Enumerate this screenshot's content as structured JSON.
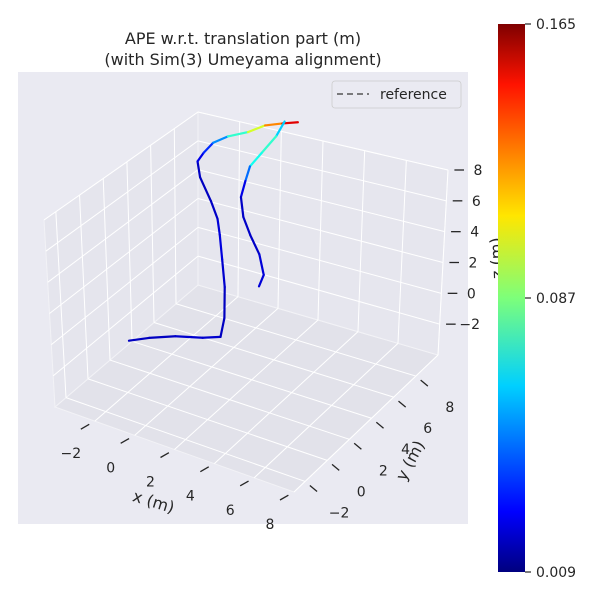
{
  "chart_data": {
    "type": "line",
    "projection": "3d",
    "title": [
      "APE w.r.t. translation part (m)",
      "(with Sim(3) Umeyama alignment)"
    ],
    "xlabel": "x (m)",
    "ylabel": "y (m)",
    "zlabel": "z (m)",
    "xlim": [
      -4,
      8
    ],
    "ylim": [
      -3,
      10
    ],
    "zlim": [
      -4,
      8
    ],
    "xticks": [
      -2,
      0,
      2,
      4,
      6,
      8
    ],
    "yticks": [
      -2,
      0,
      2,
      4,
      6,
      8
    ],
    "zticks": [
      -2,
      0,
      2,
      4,
      6,
      8
    ],
    "grid": true,
    "legend": {
      "position": "top-right",
      "entries": [
        {
          "label": "reference",
          "style": "dashed",
          "color": "#555555"
        }
      ]
    },
    "colorbar": {
      "colormap": "jet",
      "min": 0.009,
      "max": 0.165,
      "ticks": [
        0.009,
        0.087,
        0.165
      ],
      "tick_labels": [
        "0.009",
        "0.087",
        "0.165"
      ]
    },
    "series": [
      {
        "points": [
          {
            "x": -0.6,
            "y": -2.0,
            "z": 1.2,
            "ape": 0.02
          },
          {
            "x": 0.2,
            "y": -1.6,
            "z": 1.5,
            "ape": 0.018
          },
          {
            "x": 1.2,
            "y": -1.0,
            "z": 1.7,
            "ape": 0.02
          },
          {
            "x": 2.3,
            "y": -0.5,
            "z": 1.8,
            "ape": 0.022
          },
          {
            "x": 3.1,
            "y": -0.3,
            "z": 2.1,
            "ape": 0.02
          },
          {
            "x": 3.0,
            "y": 0.3,
            "z": 2.9,
            "ape": 0.018
          },
          {
            "x": 2.4,
            "y": 1.5,
            "z": 3.9,
            "ape": 0.02
          },
          {
            "x": 1.7,
            "y": 2.6,
            "z": 4.7,
            "ape": 0.022
          },
          {
            "x": 1.0,
            "y": 3.7,
            "z": 5.3,
            "ape": 0.025
          },
          {
            "x": 0.4,
            "y": 4.6,
            "z": 5.5,
            "ape": 0.02
          },
          {
            "x": -0.3,
            "y": 5.3,
            "z": 5.9,
            "ape": 0.02
          },
          {
            "x": -1.2,
            "y": 6.0,
            "z": 6.6,
            "ape": 0.018
          },
          {
            "x": -1.4,
            "y": 6.2,
            "z": 7.4,
            "ape": 0.02
          },
          {
            "x": -1.0,
            "y": 6.1,
            "z": 8.2,
            "ape": 0.03
          },
          {
            "x": -0.6,
            "y": 6.3,
            "z": 8.9,
            "ape": 0.04
          },
          {
            "x": 0.0,
            "y": 6.6,
            "z": 9.4,
            "ape": 0.06
          },
          {
            "x": 0.8,
            "y": 7.0,
            "z": 9.8,
            "ape": 0.09
          },
          {
            "x": 1.4,
            "y": 7.5,
            "z": 10.2,
            "ape": 0.11
          },
          {
            "x": 2.0,
            "y": 8.0,
            "z": 10.3,
            "ape": 0.14
          },
          {
            "x": 2.5,
            "y": 8.5,
            "z": 10.3,
            "ape": 0.16
          }
        ]
      },
      {
        "points": [
          {
            "x": 2.0,
            "y": 8.2,
            "z": 10.3,
            "ape": 0.05
          },
          {
            "x": 1.7,
            "y": 7.9,
            "z": 9.4,
            "ape": 0.07
          },
          {
            "x": 1.2,
            "y": 7.4,
            "z": 8.4,
            "ape": 0.08
          },
          {
            "x": 0.8,
            "y": 7.0,
            "z": 7.6,
            "ape": 0.06
          },
          {
            "x": 0.7,
            "y": 6.7,
            "z": 6.8,
            "ape": 0.03
          },
          {
            "x": 0.6,
            "y": 6.4,
            "z": 5.9,
            "ape": 0.02
          },
          {
            "x": 0.9,
            "y": 6.0,
            "z": 5.0,
            "ape": 0.02
          },
          {
            "x": 1.5,
            "y": 5.5,
            "z": 4.4,
            "ape": 0.02
          },
          {
            "x": 2.2,
            "y": 5.0,
            "z": 3.8,
            "ape": 0.02
          },
          {
            "x": 2.6,
            "y": 4.6,
            "z": 2.9,
            "ape": 0.025
          },
          {
            "x": 2.5,
            "y": 4.3,
            "z": 2.3,
            "ape": 0.02
          }
        ]
      }
    ]
  }
}
